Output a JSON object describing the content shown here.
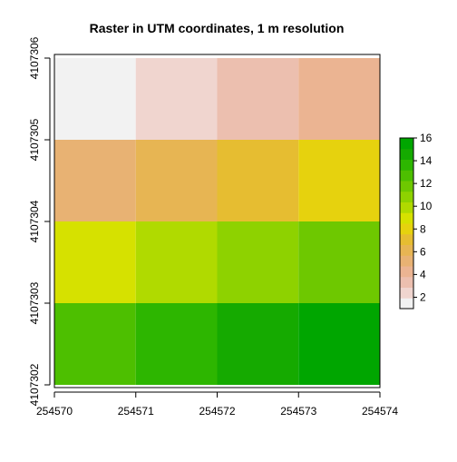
{
  "chart_data": {
    "type": "heatmap",
    "title": "Raster in UTM coordinates, 1 m resolution",
    "xlabel": "",
    "ylabel": "",
    "x_edges": [
      254570,
      254571,
      254572,
      254573,
      254574
    ],
    "y_edges": [
      4107306,
      4107305,
      4107304,
      4107303,
      4107302
    ],
    "xlim": [
      254570,
      254574
    ],
    "ylim": [
      4107302,
      4107306
    ],
    "x_ticks": [
      "254570",
      "254571",
      "254572",
      "254573",
      "254574"
    ],
    "y_ticks": [
      "4107302",
      "4107303",
      "4107304",
      "4107305",
      "4107306"
    ],
    "values": [
      [
        1,
        2,
        3,
        4
      ],
      [
        5,
        6,
        7,
        8
      ],
      [
        9,
        10,
        11,
        12
      ],
      [
        13,
        14,
        15,
        16
      ]
    ],
    "cell_colors": [
      [
        "#f2f2f2",
        "#f0d5cf",
        "#ecbfaf",
        "#ebb492"
      ],
      [
        "#e8b273",
        "#e7b553",
        "#e6bd31",
        "#e6d20e"
      ],
      [
        "#d6e100",
        "#b0da00",
        "#8ed200",
        "#6ec800"
      ],
      [
        "#4dbf00",
        "#2db600",
        "#15aa00",
        "#00a600"
      ]
    ],
    "legend": {
      "position": "right",
      "min": 1,
      "max": 16,
      "ticks": [
        "2",
        "4",
        "6",
        "8",
        "10",
        "12",
        "14",
        "16"
      ],
      "tick_values": [
        2,
        4,
        6,
        8,
        10,
        12,
        14,
        16
      ],
      "colors": [
        "#f2f2f2",
        "#f0d5cf",
        "#ecbfaf",
        "#ebb492",
        "#e8b273",
        "#e7b553",
        "#e6bd31",
        "#e6d20e",
        "#d6e100",
        "#b0da00",
        "#8ed200",
        "#6ec800",
        "#4dbf00",
        "#2db600",
        "#15aa00",
        "#00a600"
      ]
    },
    "grid": false
  }
}
